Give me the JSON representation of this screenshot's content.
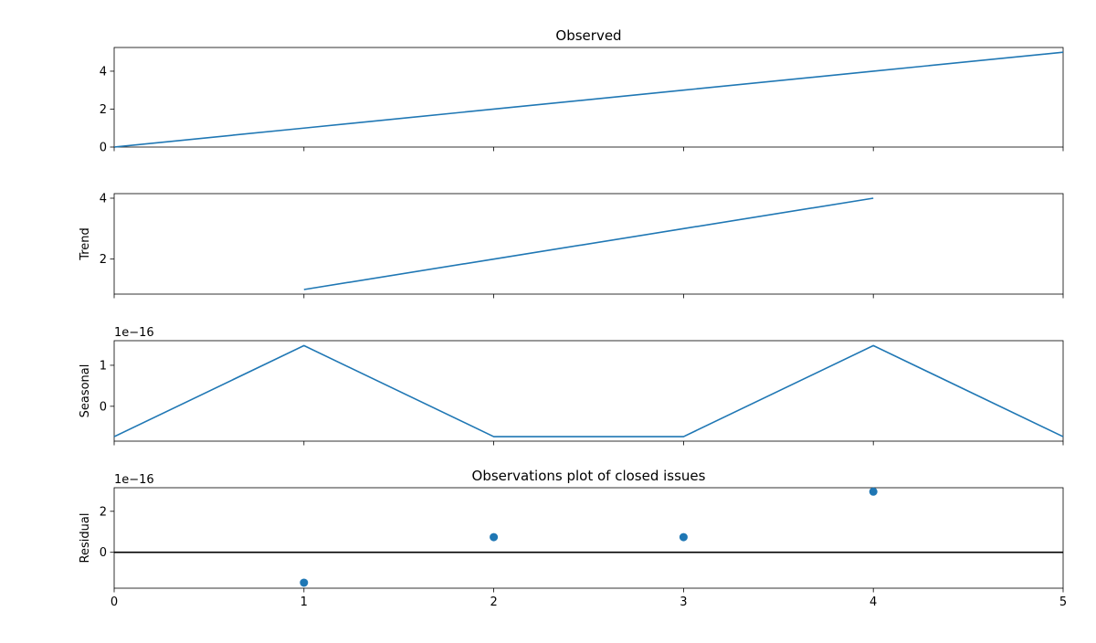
{
  "chart_data": [
    {
      "type": "line",
      "title": "Observed",
      "ylabel": "",
      "x": [
        0,
        1,
        2,
        3,
        4,
        5
      ],
      "values": [
        0,
        1,
        2,
        3,
        4,
        5
      ],
      "xlim": [
        0,
        5
      ],
      "ylim": [
        0,
        5.25
      ],
      "yticks": [
        0,
        2,
        4
      ],
      "show_xticklabels": false,
      "offset_text": "",
      "color": "#1f77b4",
      "grid": false
    },
    {
      "type": "line",
      "title": "",
      "ylabel": "Trend",
      "x": [
        1,
        2,
        3,
        4
      ],
      "values": [
        1,
        2,
        3,
        4
      ],
      "xlim": [
        0,
        5
      ],
      "ylim": [
        0.85,
        4.15
      ],
      "yticks": [
        2,
        4
      ],
      "show_xticklabels": false,
      "offset_text": "",
      "color": "#1f77b4",
      "grid": false
    },
    {
      "type": "line",
      "title": "",
      "ylabel": "Seasonal",
      "x": [
        0,
        1,
        2,
        3,
        4,
        5
      ],
      "values": [
        -0.74,
        1.48,
        -0.74,
        -0.74,
        1.48,
        -0.74
      ],
      "xlim": [
        0,
        5
      ],
      "ylim": [
        -0.85,
        1.6
      ],
      "yticks": [
        0,
        1
      ],
      "show_xticklabels": false,
      "offset_text": "1e−16",
      "color": "#1f77b4",
      "grid": false
    },
    {
      "type": "scatter",
      "title": "Observations plot of closed issues",
      "ylabel": "Residual",
      "x": [
        1,
        2,
        3,
        4
      ],
      "values": [
        -1.48,
        0.74,
        0.74,
        2.96
      ],
      "xlim": [
        0,
        5
      ],
      "ylim": [
        -1.75,
        3.15
      ],
      "yticks": [
        0,
        2
      ],
      "xticks": [
        0,
        1,
        2,
        3,
        4,
        5
      ],
      "show_xticklabels": true,
      "offset_text": "1e−16",
      "zero_line": true,
      "color": "#1f77b4",
      "grid": false
    }
  ]
}
